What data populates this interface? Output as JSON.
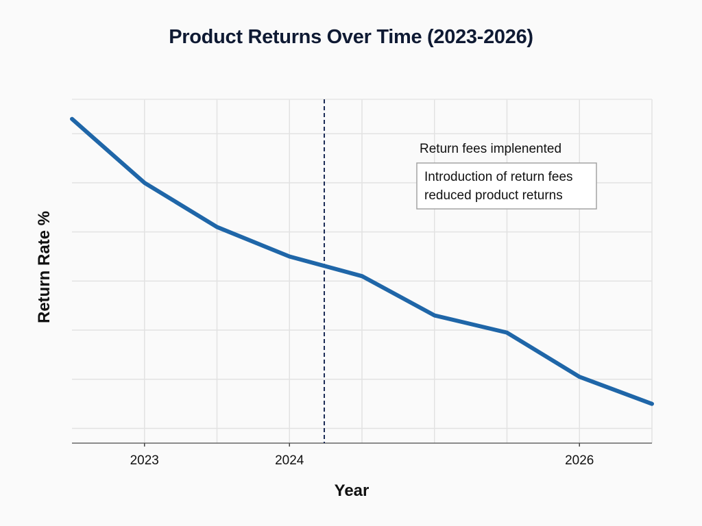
{
  "chart_data": {
    "type": "line",
    "title": "Product Returns Over Time (2023-2026)",
    "xlabel": "Year",
    "ylabel": "Return Rate %",
    "x": [
      2022.5,
      2023,
      2023.5,
      2024,
      2024.5,
      2025,
      2025.5,
      2026,
      2026.5
    ],
    "x_tick_labels": [
      "2023",
      "2024",
      "2026"
    ],
    "series": [
      {
        "values": [
          9.3,
          8.0,
          7.1,
          6.5,
          6.1,
          5.3,
          4.95,
          4.05,
          3.5
        ]
      }
    ],
    "xlim": [
      2022.5,
      2026.5
    ],
    "ylim": [
      2.7,
      9.7
    ],
    "grid": true,
    "line_color": "#1f66a8",
    "event_line": {
      "x": 2024.24,
      "color": "#1a2a55",
      "style": "dashed"
    },
    "annotations": [
      {
        "text": "Return fees implenented"
      },
      {
        "lines": [
          "Introduction of return fees",
          "reduced product returns"
        ]
      }
    ]
  }
}
